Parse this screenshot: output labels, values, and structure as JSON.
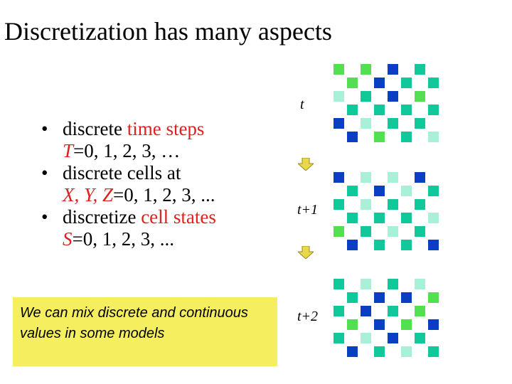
{
  "slide": {
    "title": "Discretization has many aspects",
    "bullets": [
      {
        "pre": "discrete ",
        "highlight": "time steps",
        "line2_var": "T",
        "line2_rest": "=0, 1, 2, 3, …"
      },
      {
        "pre": "discrete cells at",
        "highlight": "",
        "line2_var": "X, Y, Z",
        "line2_rest": "=0, 1, 2, 3, ..."
      },
      {
        "pre": "discretize ",
        "highlight": "cell states",
        "line2_var": "S",
        "line2_rest": "=0, 1, 2, 3, ..."
      }
    ],
    "bullet_char": "•",
    "note": "We can mix discrete and continuous values in some models",
    "time_labels": [
      "t",
      "t+1",
      "t+2"
    ]
  },
  "colors": {
    "highlight_text": "#e02020",
    "note_background": "#f5ee5f",
    "arrow": "#e8d84a",
    "cell_palette": [
      "#0a3fc4",
      "#10c89a",
      "#a8f0d8",
      "#52e050"
    ]
  }
}
